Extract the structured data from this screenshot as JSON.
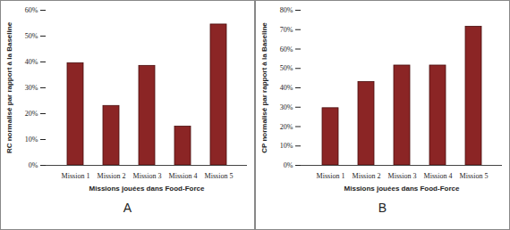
{
  "chart_data": [
    {
      "type": "bar",
      "caption": "A",
      "x_label": "Missions jouées dans Food-Force",
      "y_label": "RC normalisé par rapport à la Baseline",
      "categories": [
        "Mission 1",
        "Mission 2",
        "Mission 3",
        "Mission 4",
        "Mission 5"
      ],
      "values": [
        39.5,
        23,
        38.5,
        15,
        54.5
      ],
      "color": "#8b2525",
      "ylim": [
        0,
        60
      ],
      "yticks": [
        {
          "value": 0,
          "label": "0%"
        },
        {
          "value": 10,
          "label": "10%"
        },
        {
          "value": 20,
          "label": "20%"
        },
        {
          "value": 30,
          "label": "30%"
        },
        {
          "value": 40,
          "label": "40%"
        },
        {
          "value": 50,
          "label": "50%"
        },
        {
          "value": 60,
          "label": "60%"
        }
      ],
      "grid": false
    },
    {
      "type": "bar",
      "caption": "B",
      "x_label": "Missions jouées dans Food-Force",
      "y_label": "CP normalisé par rapport à la Baseline",
      "categories": [
        "Mission 1",
        "Mission 2",
        "Mission 3",
        "Mission 4",
        "Mission 5"
      ],
      "values": [
        29.5,
        43,
        51.5,
        51.5,
        71.5
      ],
      "color": "#8b2525",
      "ylim": [
        0,
        80
      ],
      "yticks": [
        {
          "value": 0,
          "label": "0%"
        },
        {
          "value": 10,
          "label": "10%"
        },
        {
          "value": 20,
          "label": "20%"
        },
        {
          "value": 30,
          "label": "30%"
        },
        {
          "value": 40,
          "label": "40%"
        },
        {
          "value": 50,
          "label": "50%"
        },
        {
          "value": 60,
          "label": "60%"
        },
        {
          "value": 70,
          "label": "70%"
        },
        {
          "value": 80,
          "label": "80%"
        }
      ],
      "grid": false
    }
  ]
}
